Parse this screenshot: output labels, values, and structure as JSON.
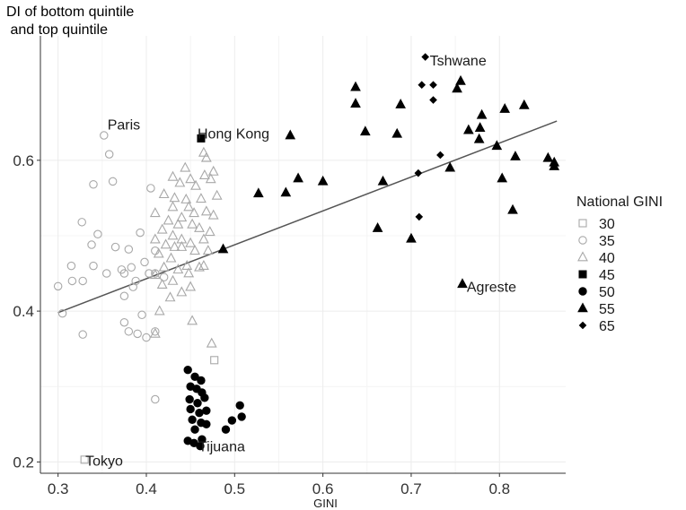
{
  "chart_data": {
    "type": "scatter",
    "title": "",
    "ylabel": "DI of bottom quintile\n and top quintile",
    "xlabel": "GINI",
    "xlim": [
      0.28,
      0.875
    ],
    "ylim": [
      0.185,
      0.765
    ],
    "xticks": [
      0.3,
      0.4,
      0.5,
      0.6,
      0.7,
      0.8
    ],
    "xtick_labels": [
      "0.3",
      "0.4",
      "0.5",
      "0.6",
      "0.7",
      "0.8"
    ],
    "yticks": [
      0.2,
      0.4,
      0.6
    ],
    "ytick_labels": [
      "0.2",
      "0.4",
      "0.6"
    ],
    "grid": true,
    "legend": {
      "title": "National GINI",
      "placement": "right",
      "entries": [
        {
          "label": "30",
          "shape": "square",
          "filled": false
        },
        {
          "label": "35",
          "shape": "circle",
          "filled": false
        },
        {
          "label": "40",
          "shape": "triangle",
          "filled": false
        },
        {
          "label": "45",
          "shape": "square",
          "filled": true
        },
        {
          "label": "50",
          "shape": "circle",
          "filled": true
        },
        {
          "label": "55",
          "shape": "triangle",
          "filled": true
        },
        {
          "label": "65",
          "shape": "diamond",
          "filled": true
        }
      ]
    },
    "colors": {
      "open": "#a8a8a8",
      "filled": "#000000",
      "fit_line": "#555555",
      "grid": "#ececec",
      "axis": "#333333"
    },
    "trend_line": {
      "x": [
        0.3,
        0.865
      ],
      "y": [
        0.398,
        0.652
      ]
    },
    "annotations": [
      {
        "text": "Paris",
        "x": 0.356,
        "y": 0.648
      },
      {
        "text": "Hong Kong",
        "x": 0.458,
        "y": 0.636
      },
      {
        "text": "Tshwane",
        "x": 0.721,
        "y": 0.733
      },
      {
        "text": "Agreste",
        "x": 0.763,
        "y": 0.433
      },
      {
        "text": "Tijuana",
        "x": 0.459,
        "y": 0.221
      },
      {
        "text": "Tokyo",
        "x": 0.331,
        "y": 0.202
      }
    ],
    "series": [
      {
        "name": "30",
        "shape": "square",
        "filled": false,
        "points": [
          [
            0.33,
            0.203
          ],
          [
            0.477,
            0.335
          ]
        ]
      },
      {
        "name": "35",
        "shape": "circle",
        "filled": false,
        "points": [
          [
            0.352,
            0.633
          ],
          [
            0.358,
            0.608
          ],
          [
            0.34,
            0.568
          ],
          [
            0.362,
            0.572
          ],
          [
            0.327,
            0.518
          ],
          [
            0.345,
            0.502
          ],
          [
            0.338,
            0.488
          ],
          [
            0.315,
            0.46
          ],
          [
            0.34,
            0.46
          ],
          [
            0.355,
            0.45
          ],
          [
            0.316,
            0.44
          ],
          [
            0.328,
            0.44
          ],
          [
            0.3,
            0.433
          ],
          [
            0.305,
            0.397
          ],
          [
            0.328,
            0.369
          ],
          [
            0.365,
            0.485
          ],
          [
            0.372,
            0.455
          ],
          [
            0.383,
            0.458
          ],
          [
            0.388,
            0.44
          ],
          [
            0.398,
            0.465
          ],
          [
            0.403,
            0.45
          ],
          [
            0.41,
            0.45
          ],
          [
            0.42,
            0.445
          ],
          [
            0.405,
            0.563
          ],
          [
            0.393,
            0.504
          ],
          [
            0.38,
            0.482
          ],
          [
            0.385,
            0.432
          ],
          [
            0.375,
            0.42
          ],
          [
            0.39,
            0.37
          ],
          [
            0.395,
            0.395
          ],
          [
            0.375,
            0.385
          ],
          [
            0.38,
            0.373
          ],
          [
            0.41,
            0.48
          ],
          [
            0.41,
            0.373
          ],
          [
            0.4,
            0.365
          ],
          [
            0.41,
            0.283
          ],
          [
            0.375,
            0.45
          ]
        ]
      },
      {
        "name": "40",
        "shape": "triangle",
        "filled": false,
        "points": [
          [
            0.444,
            0.59
          ],
          [
            0.468,
            0.603
          ],
          [
            0.476,
            0.585
          ],
          [
            0.43,
            0.578
          ],
          [
            0.45,
            0.575
          ],
          [
            0.466,
            0.58
          ],
          [
            0.473,
            0.575
          ],
          [
            0.438,
            0.57
          ],
          [
            0.456,
            0.566
          ],
          [
            0.48,
            0.553
          ],
          [
            0.42,
            0.555
          ],
          [
            0.432,
            0.55
          ],
          [
            0.445,
            0.548
          ],
          [
            0.462,
            0.549
          ],
          [
            0.41,
            0.53
          ],
          [
            0.43,
            0.538
          ],
          [
            0.448,
            0.538
          ],
          [
            0.454,
            0.53
          ],
          [
            0.468,
            0.532
          ],
          [
            0.476,
            0.527
          ],
          [
            0.44,
            0.524
          ],
          [
            0.425,
            0.52
          ],
          [
            0.436,
            0.515
          ],
          [
            0.452,
            0.515
          ],
          [
            0.46,
            0.51
          ],
          [
            0.472,
            0.505
          ],
          [
            0.418,
            0.508
          ],
          [
            0.43,
            0.5
          ],
          [
            0.44,
            0.495
          ],
          [
            0.45,
            0.49
          ],
          [
            0.465,
            0.495
          ],
          [
            0.41,
            0.495
          ],
          [
            0.422,
            0.488
          ],
          [
            0.432,
            0.485
          ],
          [
            0.44,
            0.485
          ],
          [
            0.455,
            0.48
          ],
          [
            0.47,
            0.48
          ],
          [
            0.414,
            0.476
          ],
          [
            0.428,
            0.47
          ],
          [
            0.446,
            0.46
          ],
          [
            0.46,
            0.458
          ],
          [
            0.42,
            0.458
          ],
          [
            0.436,
            0.455
          ],
          [
            0.448,
            0.45
          ],
          [
            0.41,
            0.448
          ],
          [
            0.43,
            0.44
          ],
          [
            0.418,
            0.435
          ],
          [
            0.44,
            0.425
          ],
          [
            0.45,
            0.432
          ],
          [
            0.427,
            0.418
          ],
          [
            0.465,
            0.46
          ],
          [
            0.465,
            0.61
          ],
          [
            0.452,
            0.387
          ],
          [
            0.415,
            0.4
          ],
          [
            0.474,
            0.357
          ],
          [
            0.41,
            0.37
          ]
        ]
      },
      {
        "name": "45",
        "shape": "square",
        "filled": true,
        "points": [
          [
            0.462,
            0.629
          ]
        ]
      },
      {
        "name": "50",
        "shape": "circle",
        "filled": true,
        "points": [
          [
            0.447,
            0.322
          ],
          [
            0.455,
            0.313
          ],
          [
            0.462,
            0.308
          ],
          [
            0.45,
            0.3
          ],
          [
            0.457,
            0.297
          ],
          [
            0.463,
            0.292
          ],
          [
            0.449,
            0.283
          ],
          [
            0.458,
            0.278
          ],
          [
            0.466,
            0.285
          ],
          [
            0.45,
            0.27
          ],
          [
            0.46,
            0.265
          ],
          [
            0.468,
            0.268
          ],
          [
            0.452,
            0.256
          ],
          [
            0.462,
            0.252
          ],
          [
            0.468,
            0.25
          ],
          [
            0.455,
            0.243
          ],
          [
            0.447,
            0.228
          ],
          [
            0.454,
            0.225
          ],
          [
            0.461,
            0.221
          ],
          [
            0.463,
            0.23
          ],
          [
            0.49,
            0.243
          ],
          [
            0.497,
            0.255
          ],
          [
            0.506,
            0.275
          ],
          [
            0.508,
            0.26
          ]
        ]
      },
      {
        "name": "55",
        "shape": "triangle",
        "filled": true,
        "points": [
          [
            0.487,
            0.482
          ],
          [
            0.527,
            0.556
          ],
          [
            0.558,
            0.557
          ],
          [
            0.572,
            0.576
          ],
          [
            0.6,
            0.572
          ],
          [
            0.563,
            0.633
          ],
          [
            0.637,
            0.675
          ],
          [
            0.637,
            0.697
          ],
          [
            0.648,
            0.638
          ],
          [
            0.662,
            0.51
          ],
          [
            0.668,
            0.572
          ],
          [
            0.684,
            0.635
          ],
          [
            0.688,
            0.674
          ],
          [
            0.7,
            0.496
          ],
          [
            0.744,
            0.59
          ],
          [
            0.752,
            0.695
          ],
          [
            0.756,
            0.705
          ],
          [
            0.765,
            0.64
          ],
          [
            0.777,
            0.628
          ],
          [
            0.778,
            0.643
          ],
          [
            0.78,
            0.66
          ],
          [
            0.797,
            0.619
          ],
          [
            0.803,
            0.576
          ],
          [
            0.806,
            0.668
          ],
          [
            0.815,
            0.534
          ],
          [
            0.818,
            0.605
          ],
          [
            0.828,
            0.673
          ],
          [
            0.855,
            0.603
          ],
          [
            0.862,
            0.592
          ],
          [
            0.862,
            0.597
          ],
          [
            0.758,
            0.436
          ]
        ]
      },
      {
        "name": "65",
        "shape": "diamond",
        "filled": true,
        "points": [
          [
            0.716,
            0.737
          ],
          [
            0.712,
            0.7
          ],
          [
            0.725,
            0.7
          ],
          [
            0.725,
            0.68
          ],
          [
            0.733,
            0.607
          ],
          [
            0.708,
            0.583
          ],
          [
            0.709,
            0.525
          ]
        ]
      }
    ]
  }
}
